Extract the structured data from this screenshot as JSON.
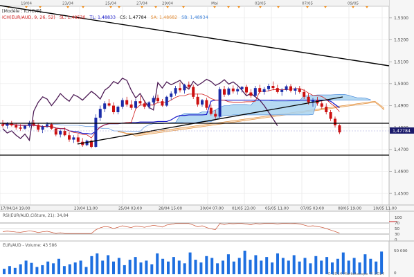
{
  "header": {
    "model_label": "[Modèle : ICHCYP]",
    "indicator_prefix": "ICH(EUR/AUD, 9, 26, 52)",
    "sl_text": "SL: 1,48530",
    "tl_text": "TL: 1,48833",
    "cs_text": "CS: 1,47784",
    "sa_text": "SA: 1,48682",
    "sb_text": "SB: 1,48934",
    "colors": {
      "sl": "#d01818",
      "tl": "#1414c8",
      "cs": "#111111",
      "sa": "#e08830",
      "sb": "#3a7fd8"
    }
  },
  "top_dates": [
    "19/04",
    "23/04",
    "25/04",
    "27/04",
    "29/04",
    "Mai",
    "03/05",
    "07/05",
    "09/05"
  ],
  "price_axis": [
    "1,5300",
    "1,5200",
    "1,5100",
    "1,5000",
    "1,4900",
    "1,4800",
    "1,4700",
    "1,4600",
    "1,4500"
  ],
  "current_price": "1,47784",
  "bottom_time_axis": [
    "17/04/14 19:00",
    "23/04 11:00",
    "25/04 03:00",
    "28/04 15:00",
    "30/04 07:00",
    "01/05 23:00",
    "05/05 11:00",
    "07/05 03:00",
    "08/05 19:00",
    "10/05 11:00"
  ],
  "rsi_panel": {
    "label": "RSI(EUR/AUD,Clôture, 21): 34,84",
    "axis": [
      "100",
      "70",
      "50",
      "30",
      "0"
    ]
  },
  "volume_panel": {
    "label": "EUR/AUD - Volume: 43 586",
    "axis": [
      "50 000",
      "0"
    ],
    "watermark": "© 2014 Marketscope © 2014",
    "bars": [
      12,
      18,
      14,
      22,
      30,
      25,
      16,
      20,
      28,
      24,
      34,
      18,
      22,
      26,
      30,
      16,
      40,
      46,
      30,
      42,
      28,
      36,
      20,
      32,
      38,
      26,
      30,
      22,
      46,
      34,
      28,
      38,
      30,
      24,
      48,
      32,
      26,
      40,
      36,
      24,
      30,
      44,
      28,
      36,
      52,
      32,
      42,
      30,
      38,
      26,
      46,
      36,
      30,
      42,
      28,
      36,
      24,
      40,
      30,
      38,
      26,
      34,
      48,
      30,
      36,
      26,
      44,
      34,
      28,
      50
    ]
  },
  "chart_data": {
    "type": "candlestick",
    "symbol": "EUR/AUD",
    "ylim": [
      1.445,
      1.535
    ],
    "candles": [
      [
        1.4815,
        1.4835,
        1.48,
        1.4808
      ],
      [
        1.4808,
        1.4825,
        1.4795,
        1.4818
      ],
      [
        1.4818,
        1.483,
        1.4805,
        1.481
      ],
      [
        1.481,
        1.482,
        1.479,
        1.48
      ],
      [
        1.48,
        1.4815,
        1.4785,
        1.4795
      ],
      [
        1.4795,
        1.4812,
        1.479,
        1.4808
      ],
      [
        1.4808,
        1.483,
        1.48,
        1.4822
      ],
      [
        1.4822,
        1.4835,
        1.4805,
        1.4812
      ],
      [
        1.4812,
        1.482,
        1.478,
        1.479
      ],
      [
        1.479,
        1.481,
        1.4775,
        1.4805
      ],
      [
        1.4805,
        1.4825,
        1.4798,
        1.4815
      ],
      [
        1.4815,
        1.4822,
        1.479,
        1.4795
      ],
      [
        1.4795,
        1.48,
        1.476,
        1.4768
      ],
      [
        1.4768,
        1.479,
        1.4755,
        1.4785
      ],
      [
        1.4785,
        1.48,
        1.476,
        1.4765
      ],
      [
        1.4765,
        1.478,
        1.4735,
        1.4745
      ],
      [
        1.4745,
        1.4765,
        1.473,
        1.4755
      ],
      [
        1.4755,
        1.477,
        1.4725,
        1.4735
      ],
      [
        1.4735,
        1.4752,
        1.4712,
        1.472
      ],
      [
        1.472,
        1.4745,
        1.4715,
        1.474
      ],
      [
        1.474,
        1.4745,
        1.4705,
        1.4712
      ],
      [
        1.4712,
        1.486,
        1.4708,
        1.4845
      ],
      [
        1.4845,
        1.49,
        1.483,
        1.4885
      ],
      [
        1.4885,
        1.492,
        1.487,
        1.491
      ],
      [
        1.491,
        1.493,
        1.4895,
        1.49
      ],
      [
        1.49,
        1.4915,
        1.486,
        1.487
      ],
      [
        1.487,
        1.49,
        1.486,
        1.4895
      ],
      [
        1.4895,
        1.4935,
        1.4885,
        1.4925
      ],
      [
        1.4925,
        1.494,
        1.4895,
        1.4905
      ],
      [
        1.4905,
        1.4925,
        1.488,
        1.489
      ],
      [
        1.489,
        1.493,
        1.4885,
        1.492
      ],
      [
        1.492,
        1.4945,
        1.49,
        1.491
      ],
      [
        1.491,
        1.4925,
        1.4885,
        1.4895
      ],
      [
        1.4895,
        1.492,
        1.4885,
        1.4915
      ],
      [
        1.4915,
        1.4945,
        1.4905,
        1.4935
      ],
      [
        1.4935,
        1.495,
        1.491,
        1.492
      ],
      [
        1.492,
        1.493,
        1.4895,
        1.49
      ],
      [
        1.49,
        1.4945,
        1.4895,
        1.494
      ],
      [
        1.494,
        1.4965,
        1.4925,
        1.4955
      ],
      [
        1.4955,
        1.499,
        1.4945,
        1.498
      ],
      [
        1.498,
        1.5005,
        1.496,
        1.497
      ],
      [
        1.497,
        1.5,
        1.4955,
        1.4995
      ],
      [
        1.4995,
        1.501,
        1.4975,
        1.4985
      ],
      [
        1.4985,
        1.4995,
        1.493,
        1.494
      ],
      [
        1.494,
        1.4955,
        1.4895,
        1.4905
      ],
      [
        1.4905,
        1.493,
        1.4895,
        1.4925
      ],
      [
        1.4925,
        1.4935,
        1.488,
        1.489
      ],
      [
        1.489,
        1.4905,
        1.4855,
        1.4862
      ],
      [
        1.4862,
        1.488,
        1.484,
        1.485
      ],
      [
        1.485,
        1.4985,
        1.4845,
        1.4975
      ],
      [
        1.4975,
        1.499,
        1.494,
        1.495
      ],
      [
        1.495,
        1.4985,
        1.4945,
        1.4978
      ],
      [
        1.4978,
        1.4992,
        1.4955,
        1.4965
      ],
      [
        1.4965,
        1.4985,
        1.495,
        1.4975
      ],
      [
        1.4975,
        1.499,
        1.496,
        1.4985
      ],
      [
        1.4985,
        1.4995,
        1.495,
        1.496
      ],
      [
        1.496,
        1.4975,
        1.4935,
        1.4945
      ],
      [
        1.4945,
        1.499,
        1.494,
        1.498
      ],
      [
        1.498,
        1.4995,
        1.4955,
        1.4962
      ],
      [
        1.4962,
        1.4985,
        1.495,
        1.4975
      ],
      [
        1.4975,
        1.5,
        1.4965,
        1.499
      ],
      [
        1.499,
        1.501,
        1.497,
        1.498
      ],
      [
        1.498,
        1.4995,
        1.4955,
        1.4962
      ],
      [
        1.4962,
        1.498,
        1.4945,
        1.4972
      ],
      [
        1.4972,
        1.4995,
        1.4965,
        1.4988
      ],
      [
        1.4988,
        1.4998,
        1.496,
        1.4968
      ],
      [
        1.4968,
        1.4985,
        1.495,
        1.4978
      ],
      [
        1.4978,
        1.499,
        1.4955,
        1.4962
      ],
      [
        1.4962,
        1.4975,
        1.493,
        1.494
      ],
      [
        1.494,
        1.4955,
        1.4905,
        1.4915
      ],
      [
        1.4915,
        1.4935,
        1.4895,
        1.4925
      ],
      [
        1.4925,
        1.494,
        1.49,
        1.491
      ],
      [
        1.491,
        1.4925,
        1.4885,
        1.4895
      ],
      [
        1.4895,
        1.491,
        1.486,
        1.487
      ],
      [
        1.487,
        1.488,
        1.483,
        1.484
      ],
      [
        1.484,
        1.485,
        1.48,
        1.481
      ],
      [
        1.481,
        1.4815,
        1.477,
        1.4778
      ]
    ]
  }
}
